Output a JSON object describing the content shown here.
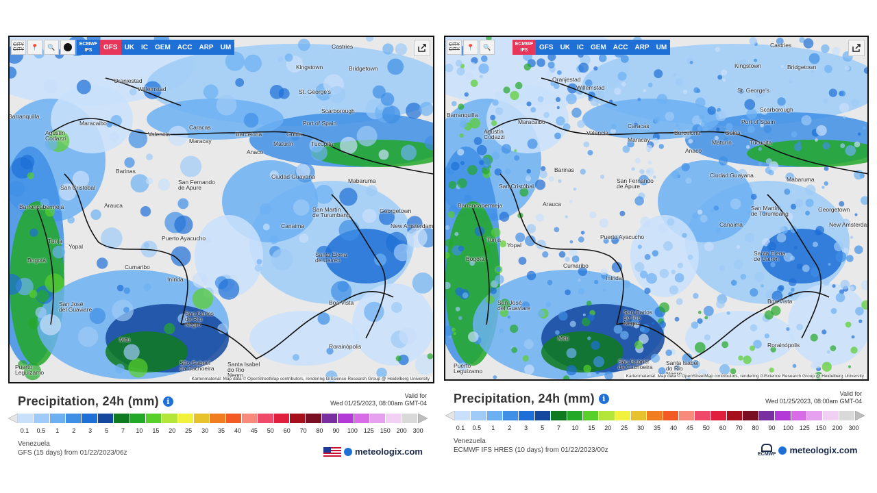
{
  "toolbar": {
    "refresh_icon": "refresh-icon",
    "location_icon": "location-pin-icon",
    "zoom_icon": "zoom-out-icon",
    "city_label": "CITY\nCITY",
    "layer_icon": "circle-layer-icon",
    "share_icon": "share-icon"
  },
  "left": {
    "models": [
      {
        "label": "ECMWF IFS",
        "active": false
      },
      {
        "label": "GFS",
        "active": true
      },
      {
        "label": "UK",
        "active": false
      },
      {
        "label": "IC",
        "active": false
      },
      {
        "label": "GEM",
        "active": false
      },
      {
        "label": "ACC",
        "active": false
      },
      {
        "label": "ARP",
        "active": false
      },
      {
        "label": "UM",
        "active": false
      }
    ],
    "credit": "Kartenmaterial: Map data © OpenStreetMap contributors, rendering GIScience Research Group @ Heidelberg University",
    "legend_title": "Precipitation, 24h (mm)",
    "valid_label": "Valid for",
    "valid_time": "Wed 01/25/2023, 08:00am GMT-04",
    "region": "Venezuela",
    "run": "GFS (15 days) from 01/22/2023/06z",
    "brand": "meteologix.com",
    "flag": "us-flag-icon"
  },
  "right": {
    "models": [
      {
        "label": "ECMWF IFS",
        "active": true
      },
      {
        "label": "GFS",
        "active": false
      },
      {
        "label": "UK",
        "active": false
      },
      {
        "label": "IC",
        "active": false
      },
      {
        "label": "GEM",
        "active": false
      },
      {
        "label": "ACC",
        "active": false
      },
      {
        "label": "ARP",
        "active": false
      },
      {
        "label": "UM",
        "active": false
      }
    ],
    "credit": "Kartenmaterial: Map data © OpenStreetMap contributors, rendering GIScience Research Group @ Heidelberg University",
    "legend_title": "Precipitation, 24h (mm)",
    "valid_label": "Valid for",
    "valid_time": "Wed 01/25/2023, 08:00am GMT-04",
    "region": "Venezuela",
    "run": "ECMWF IFS HRES (10 days) from 01/22/2023/00z",
    "brand": "meteologix.com",
    "ecmwf_logo": "ECMWF"
  },
  "legend": {
    "ticks": [
      "0.1",
      "0.5",
      "1",
      "2",
      "3",
      "5",
      "7",
      "10",
      "15",
      "20",
      "25",
      "30",
      "35",
      "40",
      "45",
      "50",
      "60",
      "70",
      "80",
      "90",
      "100",
      "125",
      "150",
      "200",
      "300"
    ],
    "colors": [
      "#c9e0fb",
      "#9ecbf7",
      "#6cb0f2",
      "#3f8fe6",
      "#1e6fd6",
      "#14479e",
      "#0f7a1f",
      "#23a828",
      "#59cf2c",
      "#b4e63a",
      "#f1f23b",
      "#e8c22c",
      "#f07d1f",
      "#f25c24",
      "#f78a7a",
      "#f04a6a",
      "#e01e3e",
      "#a80f1c",
      "#7a0f24",
      "#7a2fa0",
      "#b43ad8",
      "#d86be6",
      "#e6a0ef",
      "#f2d0f4",
      "#d9d9d9"
    ]
  },
  "cities": [
    {
      "name": "Castries"
    },
    {
      "name": "Kingstown"
    },
    {
      "name": "Bridgetown"
    },
    {
      "name": "Oranjestad"
    },
    {
      "name": "Willemstad"
    },
    {
      "name": "St. George's"
    },
    {
      "name": "Scarborough"
    },
    {
      "name": "Port of Spain"
    },
    {
      "name": "Barranquilla"
    },
    {
      "name": "Maracaibo"
    },
    {
      "name": "Agustín\nCodazzi"
    },
    {
      "name": "Caracas"
    },
    {
      "name": "Valencia"
    },
    {
      "name": "Maracay"
    },
    {
      "name": "Barcelona"
    },
    {
      "name": "Güiria"
    },
    {
      "name": "Maturín"
    },
    {
      "name": "Tucupita"
    },
    {
      "name": "Anaco"
    },
    {
      "name": "Barinas"
    },
    {
      "name": "San Fernando\nde Apure"
    },
    {
      "name": "Ciudad Guayana"
    },
    {
      "name": "Mabaruma"
    },
    {
      "name": "San Cristóbal"
    },
    {
      "name": "Barrancabermeja"
    },
    {
      "name": "Arauca"
    },
    {
      "name": "San Martín\nde Turumbang"
    },
    {
      "name": "Georgetown"
    },
    {
      "name": "New Amsterdam"
    },
    {
      "name": "Canaima"
    },
    {
      "name": "Tunja"
    },
    {
      "name": "Yopal"
    },
    {
      "name": "Puerto Ayacucho"
    },
    {
      "name": "Bogotá"
    },
    {
      "name": "Cumaribo"
    },
    {
      "name": "Santa Elena\nde Uairén"
    },
    {
      "name": "Inírida"
    },
    {
      "name": "Boa Vista"
    },
    {
      "name": "San José\ndel Guaviare"
    },
    {
      "name": "San Carlos\nde Río\nNegro"
    },
    {
      "name": "Mitú"
    },
    {
      "name": "Rorainópolis"
    },
    {
      "name": "São Gabriel\nda Cachoeira"
    },
    {
      "name": "Santa Isabel\ndo Rio\nNegro"
    },
    {
      "name": "Puerto\nLeguízamo"
    }
  ]
}
